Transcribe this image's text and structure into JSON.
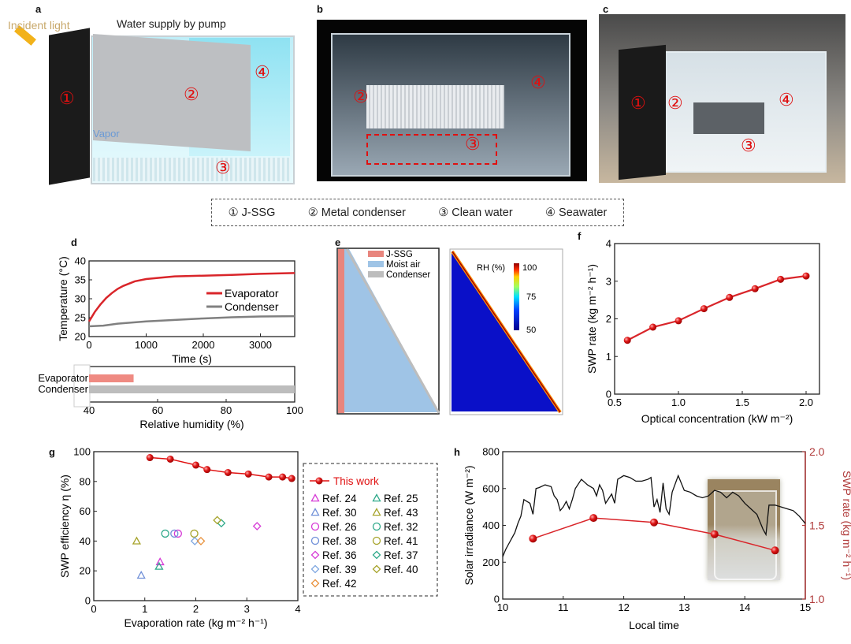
{
  "panel_labels": [
    "a",
    "b",
    "c",
    "d",
    "e",
    "f",
    "g",
    "h"
  ],
  "panel_a": {
    "incident_light": "Incident light",
    "water_supply": "Water supply by pump",
    "vapor": "Vapor",
    "markers": [
      "①",
      "②",
      "③",
      "④"
    ]
  },
  "panel_b": {
    "markers": [
      "②",
      "④",
      "③"
    ]
  },
  "panel_c": {
    "markers": [
      "①",
      "②",
      "④",
      "③"
    ]
  },
  "component_legend": [
    {
      "label": "① J-SSG"
    },
    {
      "label": "② Metal condenser"
    },
    {
      "label": "③ Clean water"
    },
    {
      "label": "④ Seawater"
    }
  ],
  "panel_e": {
    "legend": [
      {
        "label": "J-SSG",
        "color": "#e8857d"
      },
      {
        "label": "Moist air",
        "color": "#9fc4e6"
      },
      {
        "label": "Condenser",
        "color": "#bdbdbd"
      }
    ],
    "colorbar_title": "RH (%)",
    "colorbar_ticks": [
      "100",
      "75",
      "50"
    ]
  },
  "colors": {
    "red": "#d9252a",
    "gray": "#808080",
    "dark_red": "#b03a3a"
  },
  "chart_data": [
    {
      "id": "d-top",
      "type": "line",
      "xlabel": "Time (s)",
      "ylabel": "Temperature (°C)",
      "xlim": [
        0,
        3600
      ],
      "ylim": [
        20,
        40
      ],
      "xticks": [
        0,
        1000,
        2000,
        3000
      ],
      "yticks": [
        20,
        25,
        30,
        35,
        40
      ],
      "legend": "right",
      "series": [
        {
          "name": "Evaporator",
          "color": "#d9252a",
          "x": [
            0,
            100,
            200,
            300,
            400,
            500,
            600,
            800,
            1000,
            1200,
            1500,
            2000,
            2500,
            3000,
            3600
          ],
          "y": [
            24,
            26.5,
            28.5,
            30.2,
            31.5,
            32.6,
            33.4,
            34.6,
            35.2,
            35.5,
            35.9,
            36.1,
            36.3,
            36.6,
            36.8
          ]
        },
        {
          "name": "Condenser",
          "color": "#808080",
          "x": [
            0,
            250,
            500,
            1000,
            1500,
            2000,
            2500,
            3000,
            3600
          ],
          "y": [
            22.7,
            22.9,
            23.4,
            24,
            24.4,
            24.8,
            25.1,
            25.3,
            25.4
          ]
        }
      ]
    },
    {
      "id": "d-bottom",
      "type": "bar",
      "orientation": "horizontal",
      "xlabel": "Relative humidity (%)",
      "xlim": [
        40,
        100
      ],
      "xticks": [
        40,
        60,
        80,
        100
      ],
      "categories": [
        "Evaporator",
        "Condenser"
      ],
      "values": [
        53,
        100
      ],
      "colors": [
        "#ef8a82",
        "#bdbdbd"
      ]
    },
    {
      "id": "f",
      "type": "line",
      "xlabel": "Optical concentration (kW m⁻²)",
      "ylabel": "SWP rate (kg m⁻² h⁻¹)",
      "xlim": [
        0.5,
        2.1
      ],
      "ylim": [
        0,
        4
      ],
      "xticks": [
        "0.5",
        "1.0",
        "1.5",
        "2.0"
      ],
      "yticks": [
        "0",
        "1",
        "2",
        "3",
        "4"
      ],
      "series": [
        {
          "x": [
            0.6,
            0.8,
            1.0,
            1.2,
            1.4,
            1.6,
            1.8,
            2.0
          ],
          "y": [
            1.43,
            1.78,
            1.95,
            2.27,
            2.57,
            2.8,
            3.05,
            3.14
          ],
          "color": "#d9252a"
        }
      ]
    },
    {
      "id": "g",
      "type": "scatter",
      "xlabel": "Evaporation rate (kg m⁻² h⁻¹)",
      "ylabel": "SWP efficiency η (%)",
      "xlim": [
        0,
        4
      ],
      "ylim": [
        0,
        100
      ],
      "xticks": [
        0,
        1,
        2,
        3,
        4
      ],
      "yticks": [
        0,
        20,
        40,
        60,
        80,
        100
      ],
      "legend": "right",
      "series": [
        {
          "name": "This work",
          "marker": "filled-circle-line",
          "color": "#e01010",
          "x": [
            1.1,
            1.5,
            2.0,
            2.22,
            2.63,
            3.03,
            3.43,
            3.7,
            3.88
          ],
          "y": [
            96,
            95,
            91,
            88,
            86,
            85,
            83,
            83,
            82
          ]
        },
        {
          "name": "Ref. 24",
          "marker": "triangle",
          "color": "#d63ad6",
          "x": [
            1.3
          ],
          "y": [
            26
          ]
        },
        {
          "name": "Ref. 25",
          "marker": "triangle",
          "color": "#2fa98a",
          "x": [
            1.28
          ],
          "y": [
            23
          ]
        },
        {
          "name": "Ref. 30",
          "marker": "triangle",
          "color": "#6f8fd8",
          "x": [
            0.93
          ],
          "y": [
            17
          ]
        },
        {
          "name": "Ref. 43",
          "marker": "triangle",
          "color": "#a6a32a",
          "x": [
            0.84
          ],
          "y": [
            40
          ]
        },
        {
          "name": "Ref. 26",
          "marker": "circle",
          "color": "#d63ad6",
          "x": [
            1.65
          ],
          "y": [
            45
          ]
        },
        {
          "name": "Ref. 32",
          "marker": "circle",
          "color": "#2fa98a",
          "x": [
            1.4
          ],
          "y": [
            45
          ]
        },
        {
          "name": "Ref. 38",
          "marker": "circle",
          "color": "#6f8fd8",
          "x": [
            1.58
          ],
          "y": [
            45
          ]
        },
        {
          "name": "Ref. 41",
          "marker": "circle",
          "color": "#a6a32a",
          "x": [
            1.97
          ],
          "y": [
            45
          ]
        },
        {
          "name": "Ref. 36",
          "marker": "diamond",
          "color": "#d63ad6",
          "x": [
            3.2
          ],
          "y": [
            50
          ]
        },
        {
          "name": "Ref. 37",
          "marker": "diamond",
          "color": "#2fa98a",
          "x": [
            2.5
          ],
          "y": [
            52
          ]
        },
        {
          "name": "Ref. 39",
          "marker": "diamond",
          "color": "#7fa7e0",
          "x": [
            1.98
          ],
          "y": [
            40
          ]
        },
        {
          "name": "Ref. 40",
          "marker": "diamond",
          "color": "#a6a32a",
          "x": [
            2.42
          ],
          "y": [
            54
          ]
        },
        {
          "name": "Ref. 42",
          "marker": "diamond",
          "color": "#e8903a",
          "x": [
            2.1
          ],
          "y": [
            40
          ]
        }
      ]
    },
    {
      "id": "h",
      "type": "line",
      "xlabel": "Local time",
      "ylabel": "Solar irradiance (W m⁻²)",
      "ylabel_right": "SWP rate (kg m⁻² h⁻¹)",
      "xlim": [
        10,
        15
      ],
      "ylim": [
        0,
        800
      ],
      "ylim_right": [
        1.0,
        2.0
      ],
      "xticks": [
        10,
        11,
        12,
        13,
        14,
        15
      ],
      "yticks": [
        0,
        200,
        400,
        600,
        800
      ],
      "yticks_right": [
        "1.0",
        "1.5",
        "2.0"
      ],
      "series": [
        {
          "axis": "left",
          "color": "#111111",
          "x": [
            10.0,
            10.05,
            10.1,
            10.15,
            10.2,
            10.25,
            10.3,
            10.35,
            10.45,
            10.5,
            10.55,
            10.6,
            10.7,
            10.8,
            10.85,
            10.9,
            10.95,
            11.0,
            11.05,
            11.1,
            11.15,
            11.2,
            11.3,
            11.4,
            11.5,
            11.55,
            11.6,
            11.65,
            11.7,
            11.8,
            11.85,
            11.9,
            12.0,
            12.1,
            12.2,
            12.3,
            12.4,
            12.45,
            12.5,
            12.55,
            12.6,
            12.65,
            12.7,
            12.75,
            12.8,
            12.9,
            13.0,
            13.1,
            13.2,
            13.3,
            13.4,
            13.5,
            13.6,
            13.7,
            13.8,
            13.9,
            14.0,
            14.1,
            14.2,
            14.3,
            14.35,
            14.4,
            14.5,
            14.6,
            14.7,
            14.8,
            14.9,
            15.0
          ],
          "y": [
            230,
            270,
            300,
            330,
            360,
            410,
            450,
            540,
            520,
            460,
            600,
            605,
            620,
            610,
            560,
            540,
            480,
            500,
            530,
            490,
            540,
            600,
            650,
            620,
            600,
            560,
            620,
            590,
            520,
            570,
            520,
            650,
            670,
            660,
            640,
            640,
            650,
            660,
            500,
            540,
            470,
            630,
            490,
            460,
            580,
            670,
            590,
            580,
            560,
            550,
            560,
            590,
            580,
            550,
            580,
            560,
            520,
            490,
            460,
            380,
            350,
            510,
            510,
            500,
            490,
            480,
            450,
            410
          ]
        },
        {
          "axis": "right",
          "color": "#d9252a",
          "marker": "filled-circle",
          "x": [
            10.5,
            11.5,
            12.5,
            13.5,
            14.5
          ],
          "y": [
            1.41,
            1.55,
            1.52,
            1.44,
            1.33
          ]
        }
      ]
    }
  ]
}
